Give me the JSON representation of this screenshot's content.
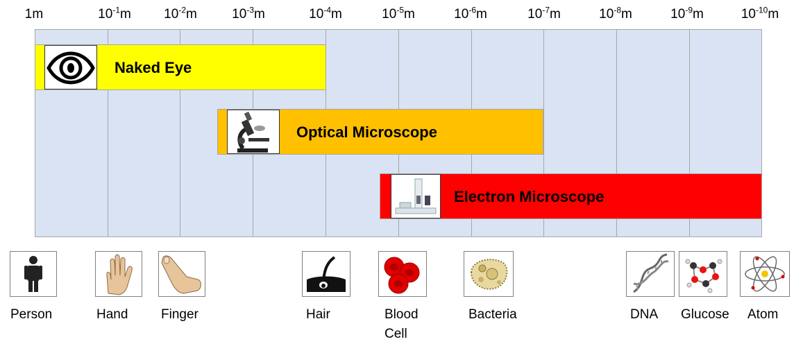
{
  "scale": {
    "ticks": [
      {
        "base": "1m",
        "exp": "",
        "unit": ""
      },
      {
        "base": "10",
        "exp": "-1",
        "unit": "m"
      },
      {
        "base": "10",
        "exp": "-2",
        "unit": "m"
      },
      {
        "base": "10",
        "exp": "-3",
        "unit": "m"
      },
      {
        "base": "10",
        "exp": "-4",
        "unit": "m"
      },
      {
        "base": "10",
        "exp": "-5",
        "unit": "m"
      },
      {
        "base": "10",
        "exp": "-6",
        "unit": "m"
      },
      {
        "base": "10",
        "exp": "-7",
        "unit": "m"
      },
      {
        "base": "10",
        "exp": "-8",
        "unit": "m"
      },
      {
        "base": "10",
        "exp": "-9",
        "unit": "m"
      },
      {
        "base": "10",
        "exp": "-10",
        "unit": "m"
      }
    ]
  },
  "ranges": {
    "naked_eye": {
      "label": "Naked Eye",
      "color": "#ffff00",
      "icon": "eye-icon"
    },
    "optical": {
      "label": "Optical Microscope",
      "color": "#ffc000",
      "icon": "microscope-icon"
    },
    "electron": {
      "label": "Electron Microscope",
      "color": "#ff0000",
      "icon": "electron-microscope-icon"
    }
  },
  "objects": {
    "person": {
      "label": "Person",
      "icon": "person-icon"
    },
    "hand": {
      "label": "Hand",
      "icon": "hand-icon"
    },
    "finger": {
      "label": "Finger",
      "icon": "finger-icon"
    },
    "hair": {
      "label": "Hair",
      "icon": "hair-icon"
    },
    "blood_cell": {
      "label": "Blood\nCell",
      "icon": "blood-cell-icon"
    },
    "bacteria": {
      "label": "Bacteria",
      "icon": "bacteria-icon"
    },
    "dna": {
      "label": "DNA",
      "icon": "dna-icon"
    },
    "glucose": {
      "label": "Glucose",
      "icon": "glucose-icon"
    },
    "atom": {
      "label": "Atom",
      "icon": "atom-icon"
    }
  }
}
